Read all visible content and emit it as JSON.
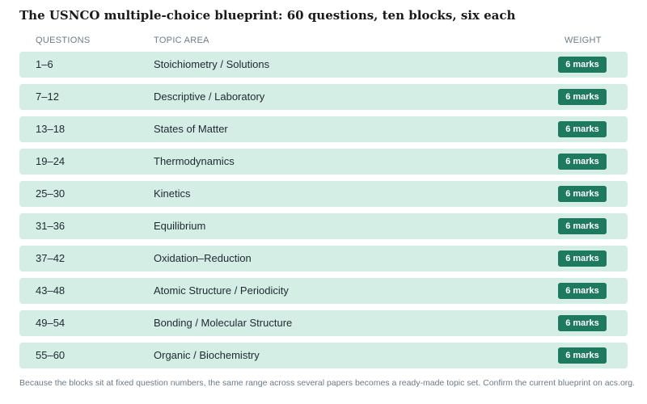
{
  "title": "The USNCO multiple-choice blueprint: 60 questions, ten blocks, six each",
  "table": {
    "header": [
      "QUESTIONS",
      "TOPIC AREA",
      "WEIGHT"
    ],
    "rows": [
      [
        "1–6",
        "Stoichiometry / Solutions",
        "6 marks"
      ],
      [
        "7–12",
        "Descriptive / Laboratory",
        "6 marks"
      ],
      [
        "13–18",
        "States of Matter",
        "6 marks"
      ],
      [
        "19–24",
        "Thermodynamics",
        "6 marks"
      ],
      [
        "25–30",
        "Kinetics",
        "6 marks"
      ],
      [
        "31–36",
        "Equilibrium",
        "6 marks"
      ],
      [
        "37–42",
        "Oxidation–Reduction",
        "6 marks"
      ],
      [
        "43–48",
        "Atomic Structure / Periodicity",
        "6 marks"
      ],
      [
        "49–54",
        "Bonding / Molecular Structure",
        "6 marks"
      ],
      [
        "55–60",
        "Organic / Biochemistry",
        "6 marks"
      ]
    ]
  },
  "footnote": "Because the blocks sit at fixed question numbers, the same range across several papers becomes a ready-made topic set. Confirm the current blueprint on acs.org."
}
